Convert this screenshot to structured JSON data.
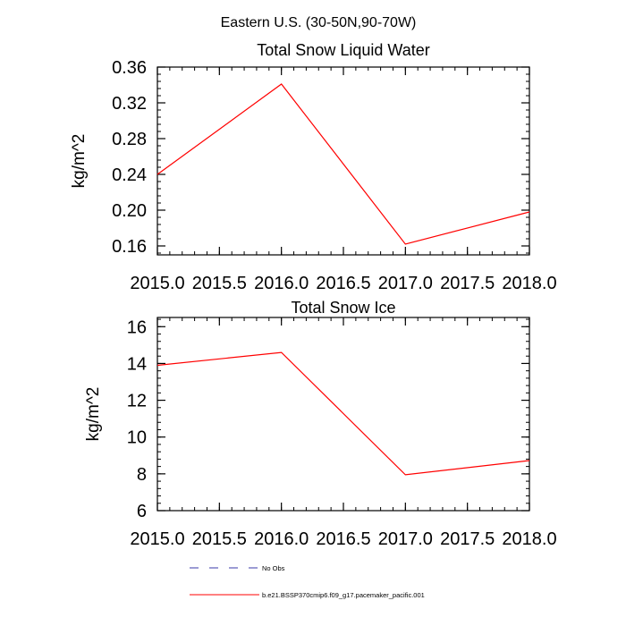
{
  "figure": {
    "main_title": "Eastern U.S. (30-50N,90-70W)"
  },
  "chart_data": [
    {
      "type": "line",
      "title": "Total Snow Liquid Water",
      "xlabel": "",
      "ylabel": "kg/m^2",
      "xlim": [
        2015.0,
        2018.0
      ],
      "ylim": [
        0.15,
        0.36
      ],
      "x_ticks": [
        2015.0,
        2015.5,
        2016.0,
        2016.5,
        2017.0,
        2017.5,
        2018.0
      ],
      "x_tick_labels": [
        "2015.0",
        "2015.5",
        "2016.0",
        "2016.5",
        "2017.0",
        "2017.5",
        "2018.0"
      ],
      "y_ticks": [
        0.16,
        0.2,
        0.24,
        0.28,
        0.32,
        0.36
      ],
      "y_tick_labels": [
        "0.16",
        "0.20",
        "0.24",
        "0.28",
        "0.32",
        "0.36"
      ],
      "series": [
        {
          "name": "b.e21.BSSP370cmip6.f09_g17.pacemaker_pacific.001",
          "color": "#ff0000",
          "x": [
            2015.0,
            2016.0,
            2017.0,
            2018.0
          ],
          "values": [
            0.24,
            0.341,
            0.162,
            0.198
          ]
        }
      ]
    },
    {
      "type": "line",
      "title": "Total Snow Ice",
      "xlabel": "",
      "ylabel": "kg/m^2",
      "xlim": [
        2015.0,
        2018.0
      ],
      "ylim": [
        6,
        16.5
      ],
      "x_ticks": [
        2015.0,
        2015.5,
        2016.0,
        2016.5,
        2017.0,
        2017.5,
        2018.0
      ],
      "x_tick_labels": [
        "2015.0",
        "2015.5",
        "2016.0",
        "2016.5",
        "2017.0",
        "2017.5",
        "2018.0"
      ],
      "y_ticks": [
        6,
        8,
        10,
        12,
        14,
        16
      ],
      "y_tick_labels": [
        "6",
        "8",
        "10",
        "12",
        "14",
        "16"
      ],
      "series": [
        {
          "name": "b.e21.BSSP370cmip6.f09_g17.pacemaker_pacific.001",
          "color": "#ff0000",
          "x": [
            2015.0,
            2016.0,
            2017.0,
            2018.0
          ],
          "values": [
            13.9,
            14.6,
            7.95,
            8.72
          ]
        }
      ]
    }
  ],
  "legend": {
    "entries": [
      {
        "label": "No Obs",
        "color": "#3a3aa8",
        "style": "dashed"
      },
      {
        "label": "b.e21.BSSP370cmip6.f09_g17.pacemaker_pacific.001",
        "color": "#ff0000",
        "style": "solid"
      }
    ]
  }
}
